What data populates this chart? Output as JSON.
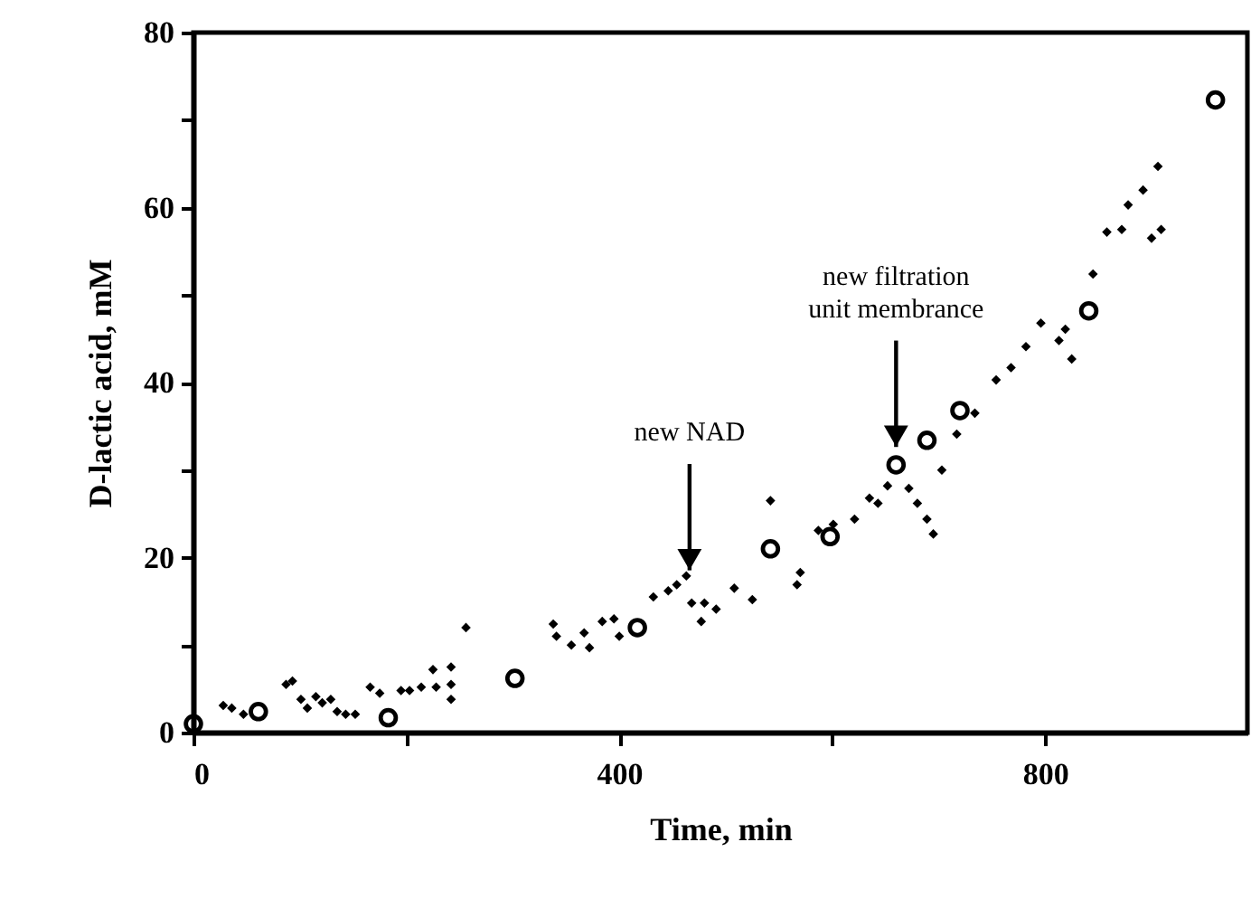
{
  "chart_data": {
    "type": "scatter",
    "xlabel": "Time,  min",
    "ylabel": "D-lactic acid, mM",
    "xlim": [
      0,
      990
    ],
    "ylim": [
      0,
      80
    ],
    "xticks": [
      0,
      {
        "value": 200,
        "label": null
      },
      400,
      {
        "value": 600,
        "label": null
      },
      800
    ],
    "yticks": [
      0,
      {
        "value": 10,
        "label": null
      },
      20,
      {
        "value": 30,
        "label": null
      },
      40,
      {
        "value": 50,
        "label": null
      },
      60,
      {
        "value": 70,
        "label": null
      },
      80
    ],
    "grid": false,
    "series": [
      {
        "color": "#000000",
        "marker": "diamond",
        "x": [
          28,
          36,
          47,
          87,
          93,
          101,
          107,
          115,
          121,
          129,
          135,
          143,
          152,
          166,
          175,
          195,
          203,
          214,
          225,
          228,
          242,
          242,
          242,
          256,
          338,
          341,
          355,
          367,
          372,
          384,
          395,
          400,
          432,
          446,
          454,
          463,
          468,
          477,
          480,
          491,
          508,
          525,
          542,
          567,
          570,
          587,
          601,
          621,
          635,
          643,
          652,
          672,
          680,
          689,
          695,
          703,
          717,
          734,
          754,
          768,
          782,
          796,
          813,
          819,
          825,
          845,
          858,
          872,
          878,
          892,
          900,
          906,
          909
        ],
        "values": [
          3.1,
          2.8,
          2.1,
          5.5,
          5.9,
          3.8,
          2.8,
          4.1,
          3.4,
          3.8,
          2.4,
          2.1,
          2.1,
          5.2,
          4.5,
          4.8,
          4.8,
          5.2,
          7.2,
          5.2,
          7.5,
          5.5,
          3.8,
          12.0,
          12.4,
          11.0,
          10.0,
          11.4,
          9.7,
          12.7,
          13.0,
          11.0,
          15.5,
          16.2,
          16.9,
          17.9,
          14.8,
          12.7,
          14.8,
          14.1,
          16.5,
          15.2,
          26.5,
          16.9,
          18.3,
          23.1,
          23.8,
          24.4,
          26.8,
          26.2,
          28.2,
          27.9,
          26.2,
          24.4,
          22.7,
          30.0,
          34.1,
          36.5,
          40.3,
          41.7,
          44.1,
          46.8,
          44.8,
          46.1,
          42.7,
          52.4,
          57.2,
          57.5,
          60.3,
          62.0,
          56.5,
          64.7,
          57.5
        ]
      },
      {
        "color": "#000000",
        "marker": "circle",
        "x": [
          0,
          61,
          183,
          302,
          417,
          542,
          598,
          660,
          689,
          720,
          841,
          960
        ],
        "values": [
          1.0,
          2.4,
          1.7,
          6.2,
          12.0,
          21.0,
          22.4,
          30.6,
          33.4,
          36.8,
          48.2,
          72.3
        ]
      }
    ],
    "annotations": [
      {
        "text": "new NAD",
        "x": 466,
        "y": 17.9
      },
      {
        "text": "new filtration\nunit membrance",
        "x": 660,
        "y": 32
      }
    ]
  }
}
